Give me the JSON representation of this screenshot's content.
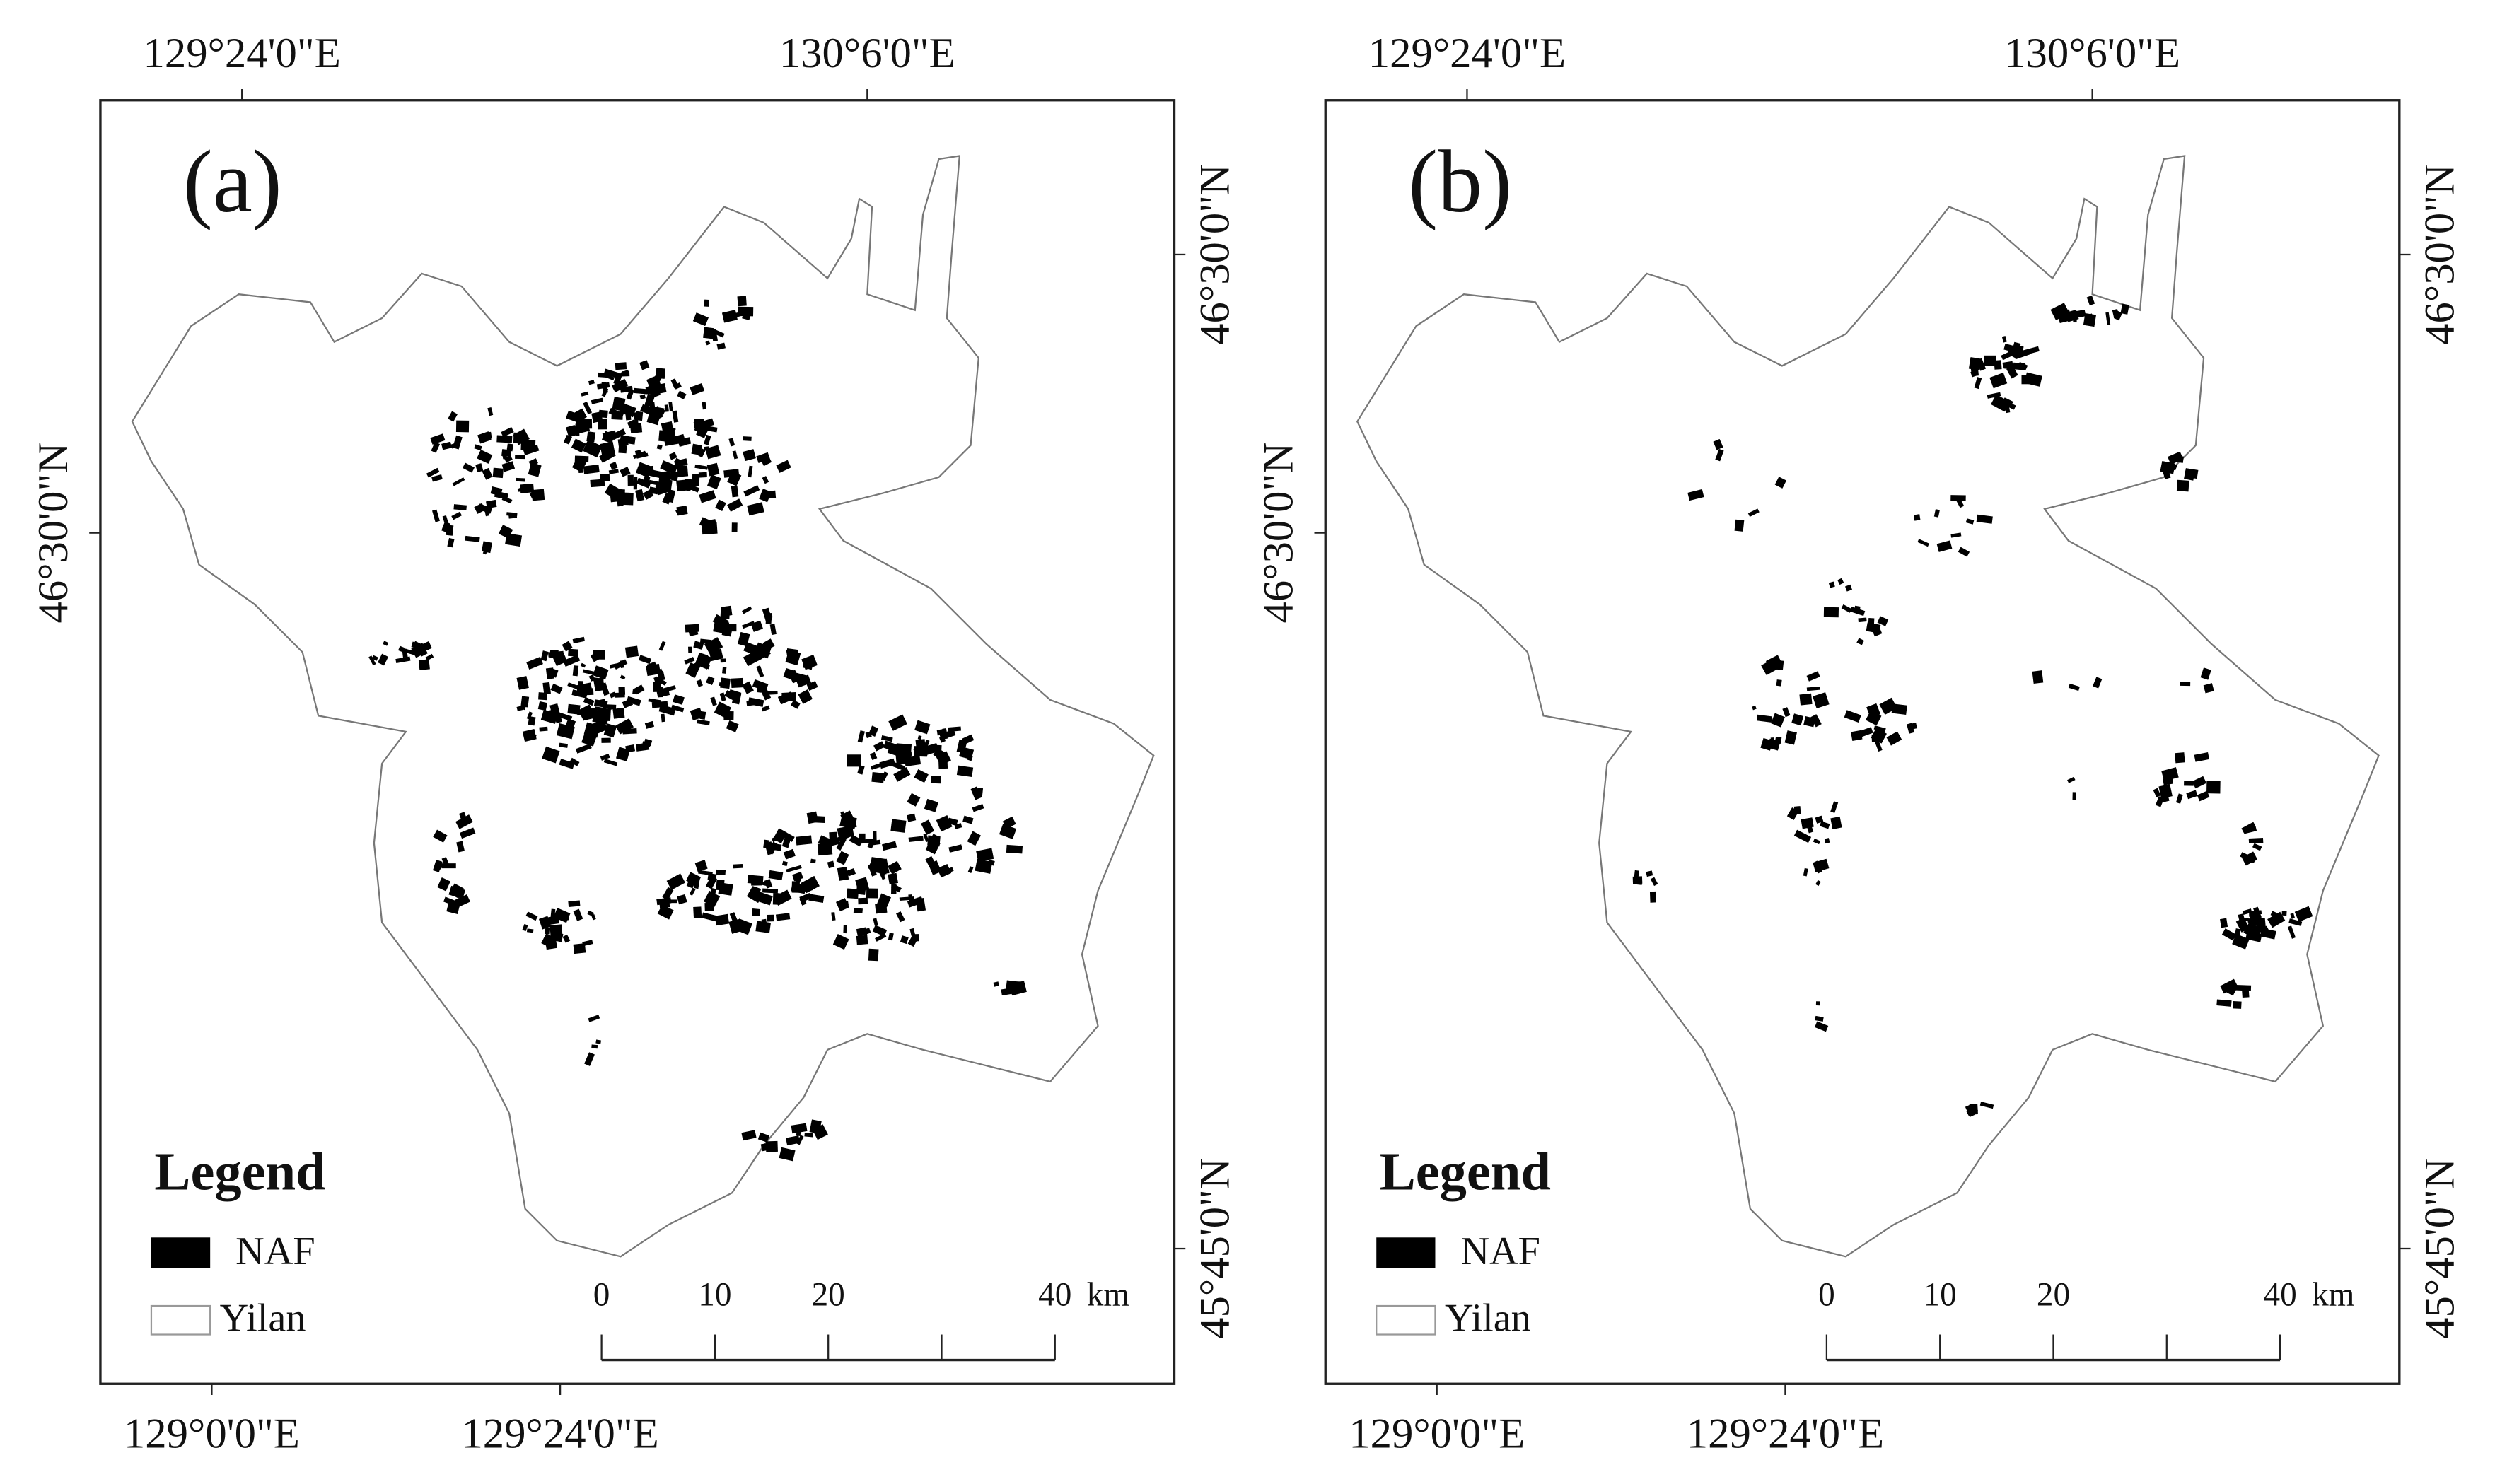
{
  "panels": [
    {
      "label": "(a)",
      "top_labels": [
        "129°24'0\"E",
        "130°6'0\"E"
      ],
      "bottom_labels": [
        "129°0'0\"E",
        "129°24'0\"E"
      ],
      "left_labels": [
        "46°30'0\"N"
      ],
      "right_labels": [
        "46°30'0\"N",
        "45°45'0\"N"
      ],
      "legend": {
        "title": "Legend",
        "items": [
          "NAF",
          "Yilan"
        ]
      },
      "scale_bar": {
        "labels": [
          "0",
          "10",
          "20",
          "40"
        ],
        "unit": "km"
      }
    },
    {
      "label": "(b)",
      "top_labels": [
        "129°24'0\"E",
        "130°6'0\"E"
      ],
      "bottom_labels": [
        "129°0'0\"E",
        "129°24'0\"E"
      ],
      "left_labels": [
        "46°30'0\"N"
      ],
      "right_labels": [
        "46°30'0\"N",
        "45°45'0\"N"
      ],
      "legend": {
        "title": "Legend",
        "items": [
          "NAF",
          "Yilan"
        ]
      },
      "scale_bar": {
        "labels": [
          "0",
          "10",
          "20",
          "40"
        ],
        "unit": "km"
      }
    }
  ]
}
